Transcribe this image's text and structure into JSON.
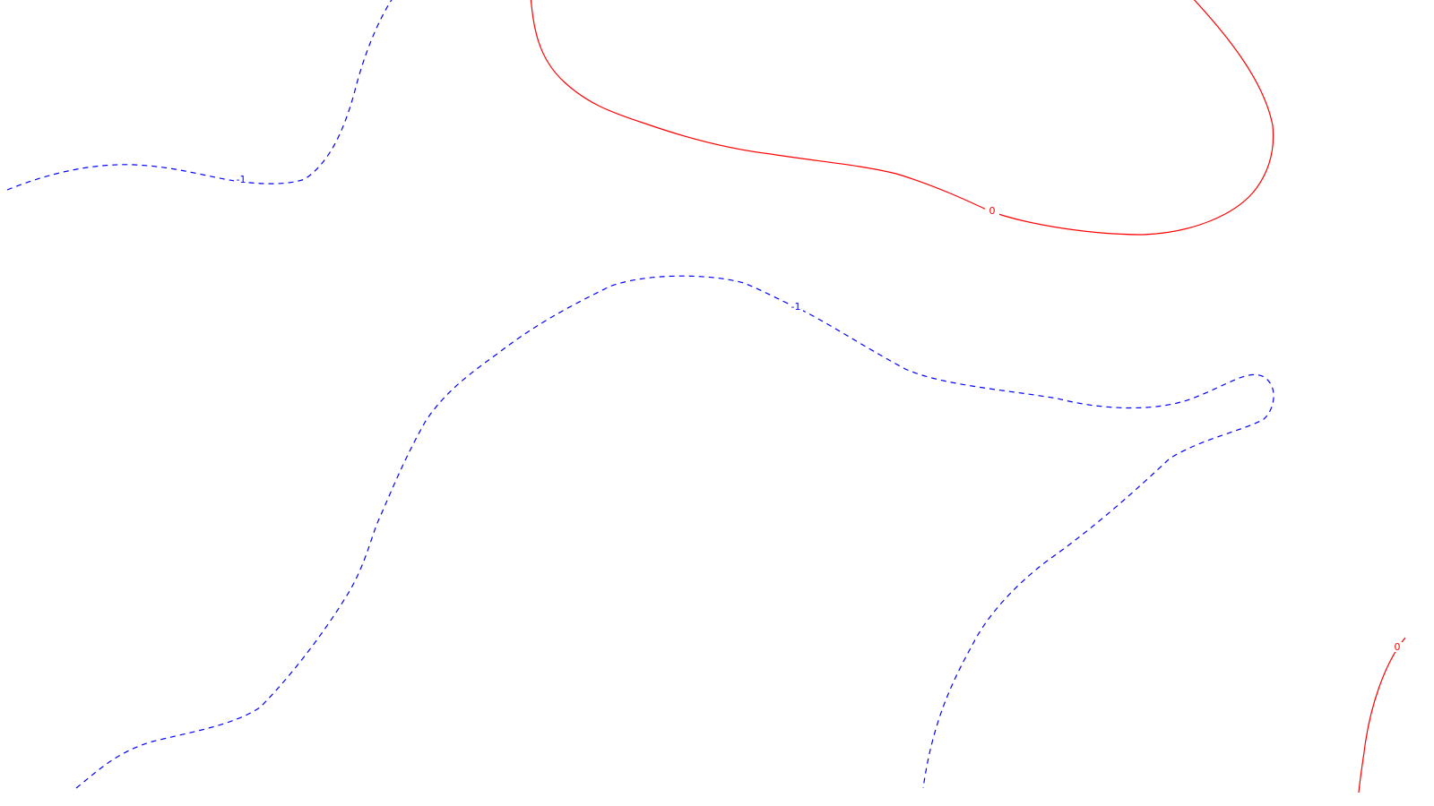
{
  "chart_data": {
    "type": "contour",
    "title": "",
    "xlabel": "",
    "ylabel": "",
    "grid": false,
    "legend": "none",
    "colors": {
      "negative": "#0000ff",
      "zero": "#ff0000",
      "background": "#ffffff"
    },
    "line_styles": {
      "negative": "dashed",
      "zero": "solid"
    },
    "contours": [
      {
        "level": -1,
        "label": "-1",
        "style": "dashed",
        "color": "#0000ff"
      },
      {
        "level": -1,
        "label": "-1",
        "style": "dashed",
        "color": "#0000ff"
      },
      {
        "level": -1,
        "label": "",
        "style": "dashed",
        "color": "#0000ff"
      },
      {
        "level": 0,
        "label": "0",
        "style": "solid",
        "color": "#ff0000"
      },
      {
        "level": 0,
        "label": "0",
        "style": "solid",
        "color": "#ff0000"
      }
    ]
  }
}
